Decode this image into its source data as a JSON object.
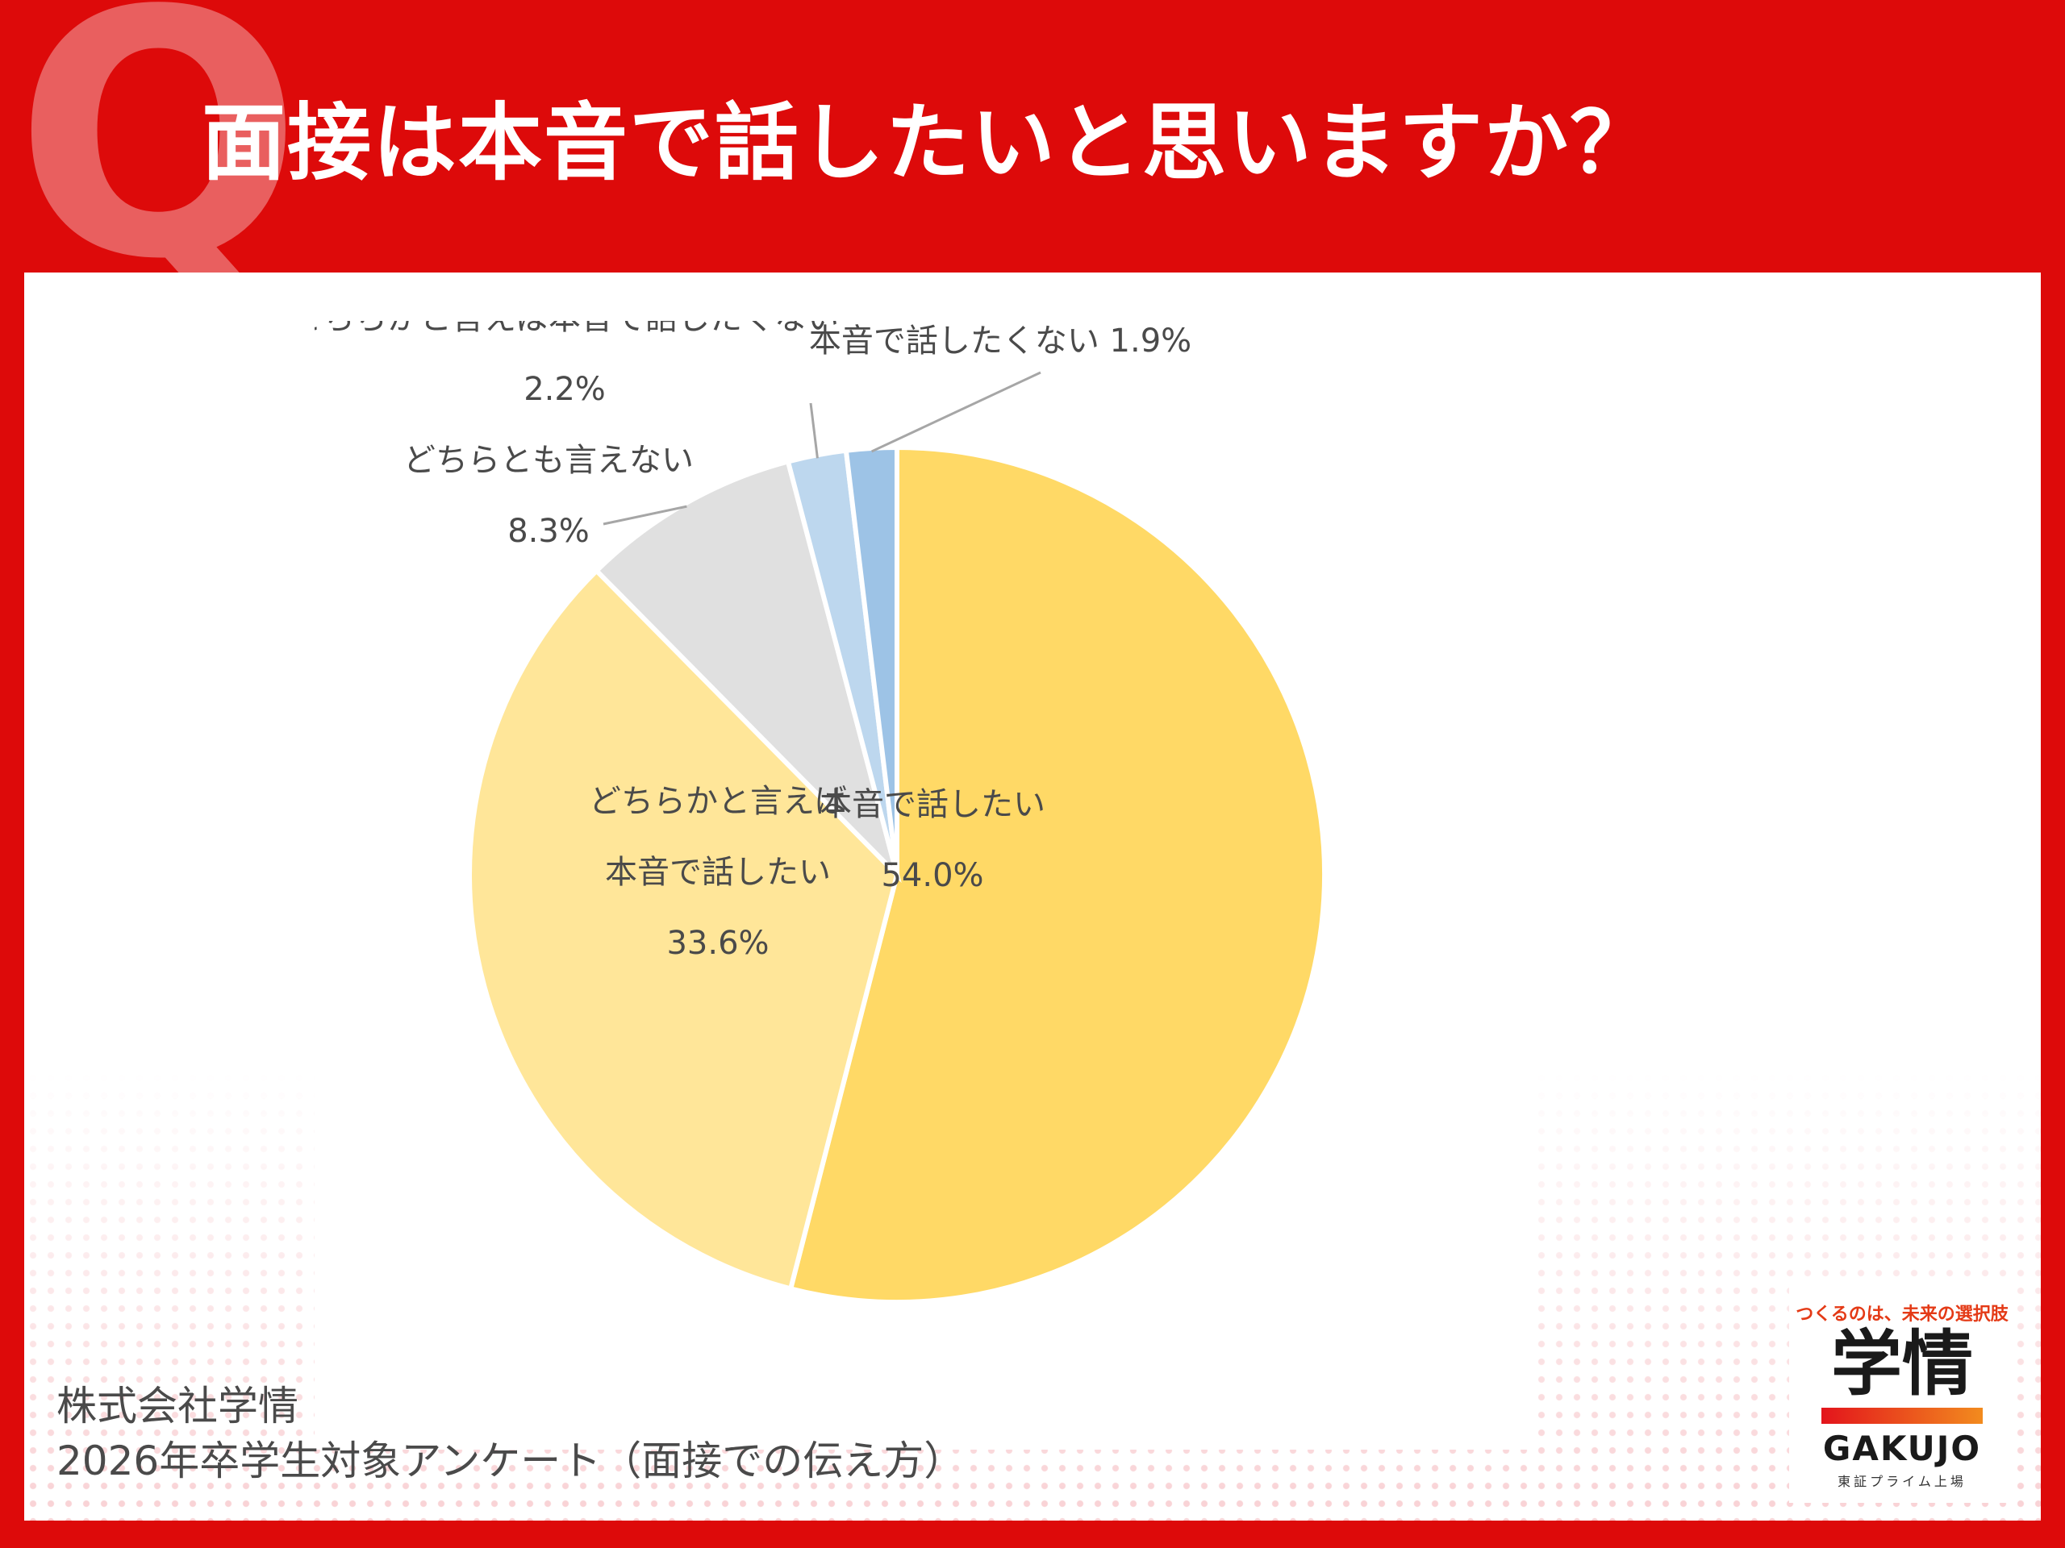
{
  "header": {
    "letter": "Q",
    "title": "面接は本音で話したいと思いますか？"
  },
  "chart_data": {
    "type": "pie",
    "start_angle": "top",
    "direction": "clockwise",
    "slices": [
      {
        "label": "本音で話したい",
        "value": 54.0,
        "display": "54.0%",
        "color": "#ffd966"
      },
      {
        "label": "どちらかと言えば本音で話したい",
        "lines": [
          "どちらかと言えば",
          "本音で話したい"
        ],
        "value": 33.6,
        "display": "33.6%",
        "color": "#ffe699"
      },
      {
        "label": "どちらとも言えない",
        "value": 8.3,
        "display": "8.3%",
        "color": "#e0e0e0"
      },
      {
        "label": "どちらかと言えば本音で話したくない",
        "value": 2.2,
        "display": "2.2%",
        "color": "#bdd7ee"
      },
      {
        "label": "本音で話したくない",
        "value": 1.9,
        "display": "1.9%",
        "color": "#9dc3e6"
      }
    ]
  },
  "source": {
    "line1": "株式会社学情",
    "line2": "2026年卒学生対象アンケート（面接での伝え方）"
  },
  "logo": {
    "tagline": "つくるのは、未来の選択肢",
    "name_jp": "学情",
    "name_en": "GAKUJO",
    "sub": "東証プライム上場"
  }
}
